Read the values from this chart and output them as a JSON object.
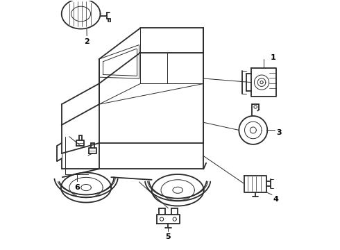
{
  "bg_color": "#ffffff",
  "line_color": "#2a2a2a",
  "label_color": "#000000",
  "lw_main": 1.3,
  "lw_thin": 0.7,
  "lw_detail": 0.5,
  "figsize": [
    4.9,
    3.6
  ],
  "dpi": 100
}
